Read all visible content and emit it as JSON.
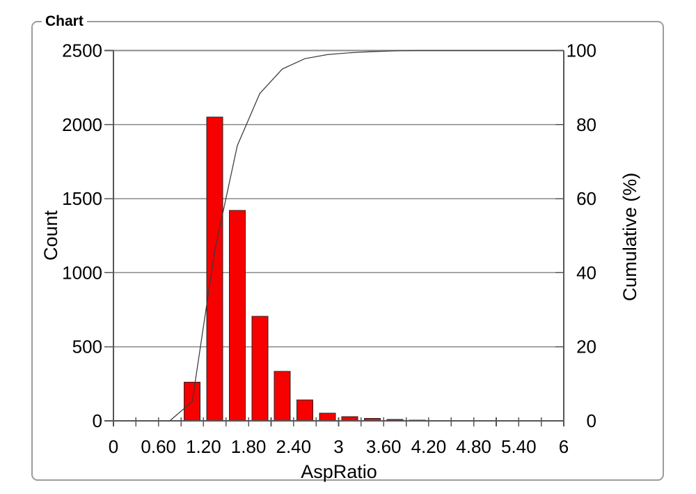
{
  "group_title": "Chart",
  "chart_data": {
    "type": "bar",
    "subtype": "histogram-with-cumulative-line",
    "title": "Chart",
    "xlabel": "AspRatio",
    "ylabel_left": "Count",
    "ylabel_right": "Cumulative (%)",
    "xlim": [
      0,
      6
    ],
    "ylim_left": [
      0,
      2500
    ],
    "ylim_right": [
      0,
      100
    ],
    "grid": "horizontal",
    "legend": "none",
    "x_ticks": [
      {
        "value": 0.0,
        "label": "0"
      },
      {
        "value": 0.6,
        "label": "0.60"
      },
      {
        "value": 1.2,
        "label": "1.20"
      },
      {
        "value": 1.8,
        "label": "1.80"
      },
      {
        "value": 2.4,
        "label": "2.40"
      },
      {
        "value": 3.0,
        "label": "3"
      },
      {
        "value": 3.6,
        "label": "3.60"
      },
      {
        "value": 4.2,
        "label": "4.20"
      },
      {
        "value": 4.8,
        "label": "4.80"
      },
      {
        "value": 5.4,
        "label": "5.40"
      },
      {
        "value": 6.0,
        "label": "6"
      }
    ],
    "x_minor_tick_step": 0.3,
    "y_left_ticks": [
      0,
      500,
      1000,
      1500,
      2000,
      2500
    ],
    "y_right_ticks": [
      0,
      20,
      40,
      60,
      80,
      100
    ],
    "bars": {
      "bin_width": 0.3,
      "bin_centers": [
        1.05,
        1.35,
        1.65,
        1.95,
        2.25,
        2.55,
        2.85,
        3.15,
        3.45,
        3.75,
        4.05
      ],
      "counts": [
        260,
        2050,
        1420,
        705,
        335,
        140,
        52,
        28,
        16,
        9,
        4
      ],
      "fill_color": "#F60000",
      "stroke_color": "#262626"
    },
    "cumulative_line": {
      "axis": "right",
      "color": "#3a3a3a",
      "points": [
        [
          0.75,
          0
        ],
        [
          1.05,
          5.2
        ],
        [
          1.35,
          46.0
        ],
        [
          1.65,
          74.3
        ],
        [
          1.95,
          88.4
        ],
        [
          2.25,
          95.0
        ],
        [
          2.55,
          97.8
        ],
        [
          2.85,
          98.9
        ],
        [
          3.15,
          99.4
        ],
        [
          3.45,
          99.7
        ],
        [
          3.75,
          99.9
        ],
        [
          4.05,
          100
        ],
        [
          6.0,
          100
        ]
      ]
    },
    "colors": {
      "gridline": "#8a8a8a",
      "axis": "#555555",
      "text": "#000000",
      "frame": "#9c9c9c",
      "background": "#ffffff"
    }
  }
}
